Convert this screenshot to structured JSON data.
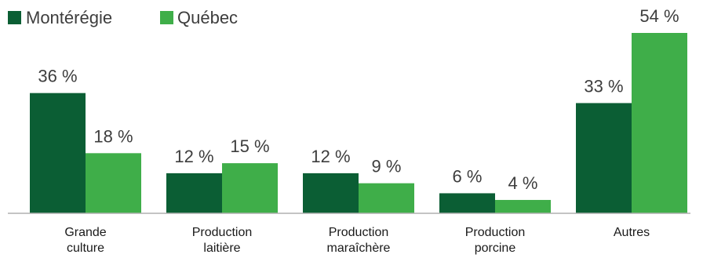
{
  "chart_data": {
    "type": "bar",
    "categories": [
      [
        "Grande",
        "culture"
      ],
      [
        "Production",
        "laitière"
      ],
      [
        "Production",
        "maraîchère"
      ],
      [
        "Production",
        "porcine"
      ],
      [
        "Autres"
      ]
    ],
    "series": [
      {
        "name": "Montérégie",
        "color": "#0b5e34",
        "values": [
          36,
          12,
          12,
          6,
          33
        ],
        "labels": [
          "36 %",
          "12 %",
          "12 %",
          "6 %",
          "33 %"
        ]
      },
      {
        "name": "Québec",
        "color": "#3fae49",
        "values": [
          18,
          15,
          9,
          4,
          54
        ],
        "labels": [
          "18 %",
          "15 %",
          "9 %",
          "4 %",
          "54 %"
        ]
      }
    ],
    "title": "",
    "xlabel": "",
    "ylabel": "",
    "ylim": [
      0,
      54
    ],
    "grid": false,
    "legend": "top-left",
    "axis_color": "#b0b0b0"
  }
}
